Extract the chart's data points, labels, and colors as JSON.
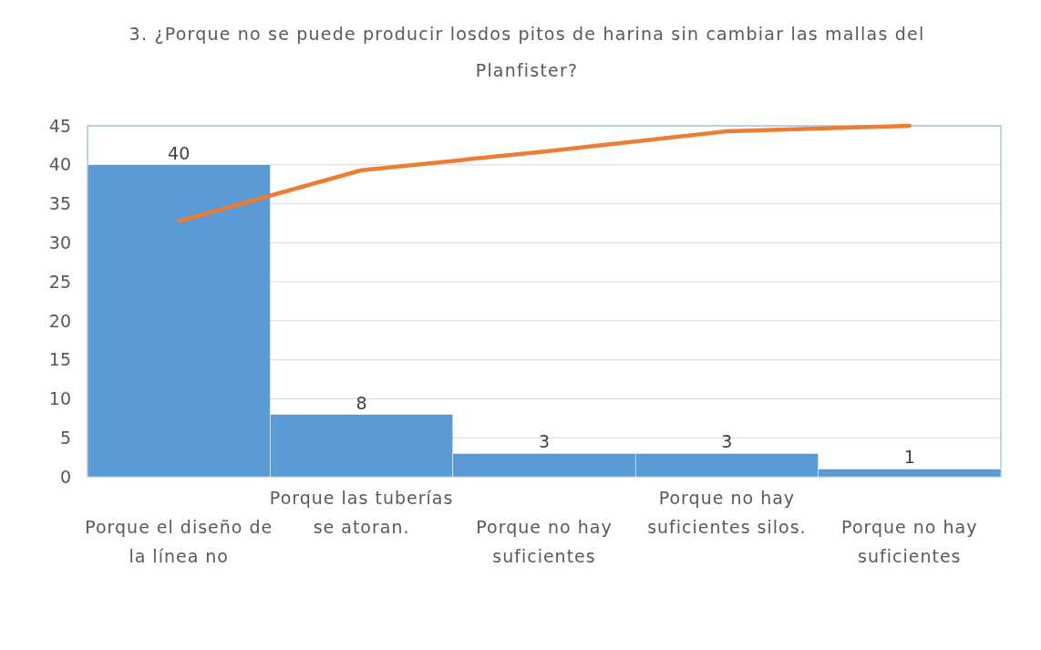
{
  "chart_data": {
    "type": "bar",
    "title": "3. ¿Porque no se puede producir losdos pitos de harina sin cambiar las mallas del Planfister?",
    "categories": [
      "Porque el diseño de la línea no",
      "Porque las tuberías se atoran.",
      "Porque no hay suficientes",
      "Porque no hay suficientes silos.",
      "Porque no hay suficientes"
    ],
    "series": [
      {
        "color": "#5b9bd5",
        "values": [
          40,
          8,
          3,
          3,
          1
        ],
        "value_labels": [
          "40",
          "8",
          "3",
          "3",
          "1"
        ]
      },
      {
        "type": "line",
        "color": "#ed7d31",
        "values": [
          32.8,
          39.3,
          41.7,
          44.3,
          45
        ]
      }
    ],
    "ylim": [
      0,
      45
    ],
    "yticks": [
      0,
      5,
      10,
      15,
      20,
      25,
      30,
      35,
      40,
      45
    ],
    "grid": "y"
  }
}
